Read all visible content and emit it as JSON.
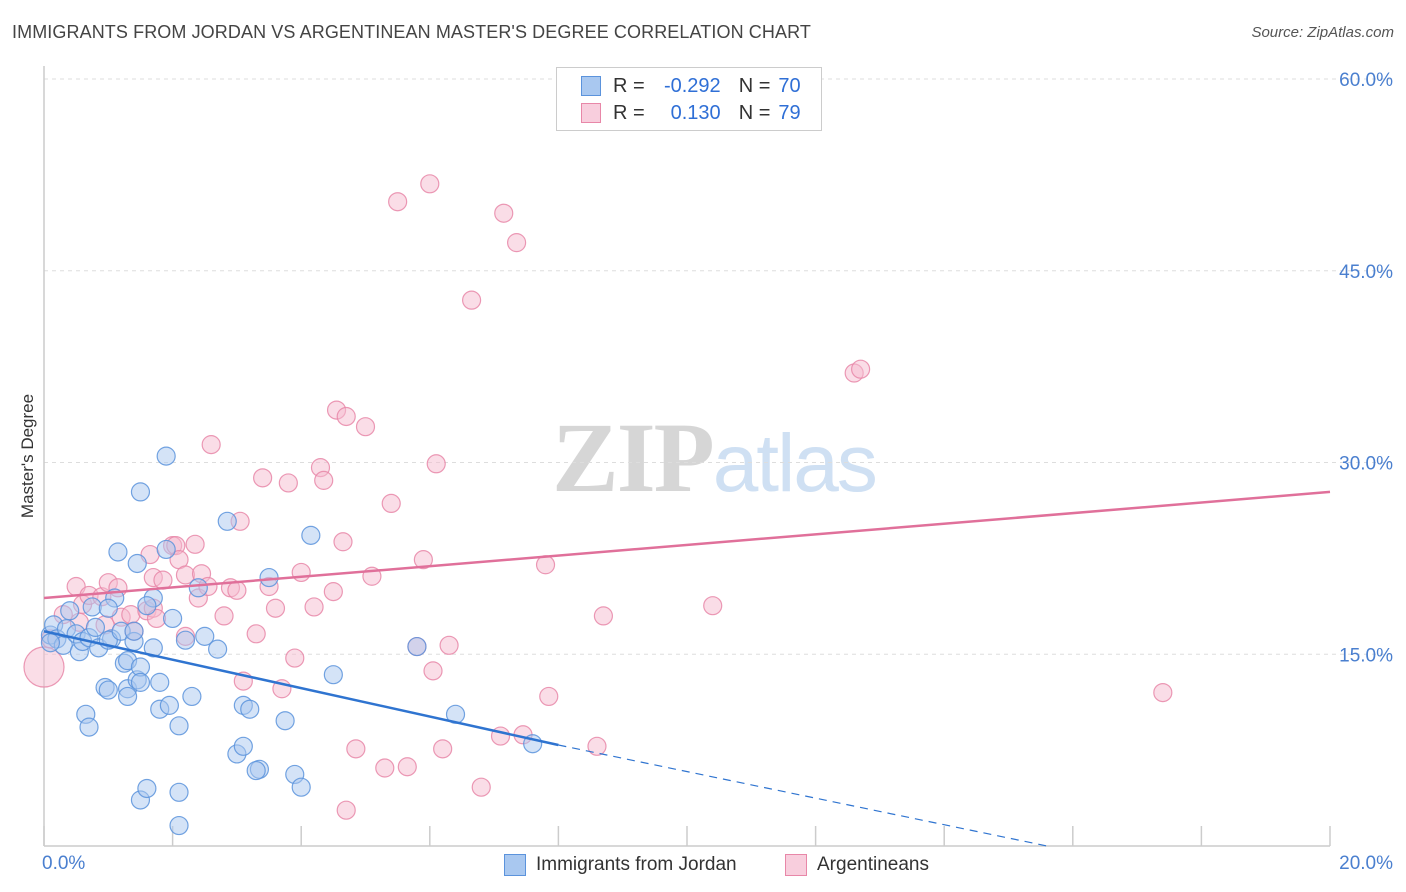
{
  "title": "IMMIGRANTS FROM JORDAN VS ARGENTINEAN MASTER'S DEGREE CORRELATION CHART",
  "source": "Source: ZipAtlas.com",
  "watermark": {
    "zip": "ZIP",
    "atlas": "atlas"
  },
  "legend": {
    "rows": [
      {
        "r_label": "R =",
        "r_value": "-0.292",
        "n_label": "N =",
        "n_value": "70"
      },
      {
        "r_label": "R =",
        "r_value": "0.130",
        "n_label": "N =",
        "n_value": "79"
      }
    ]
  },
  "bottom_legend": [
    "Immigrants from Jordan",
    "Argentineans"
  ],
  "colors": {
    "blue_fill": "#a9c8f0",
    "blue_stroke": "#5b93dc",
    "blue_line": "#2f74d0",
    "pink_fill": "#f6bcd0",
    "pink_stroke": "#e887a8",
    "pink_line": "#e0709a",
    "grid": "#dddddd",
    "tick": "#4a7fcf"
  },
  "chart_data": {
    "type": "scatter",
    "title": "IMMIGRANTS FROM JORDAN VS ARGENTINEAN MASTER'S DEGREE CORRELATION CHART",
    "xlabel": "",
    "ylabel": "Master's Degree",
    "xlim": [
      0,
      20
    ],
    "ylim": [
      0,
      60
    ],
    "x_tick_labels": [
      {
        "value": 0,
        "label": "0.0%"
      },
      {
        "value": 20,
        "label": "20.0%"
      }
    ],
    "y_tick_labels": [
      {
        "value": 15,
        "label": "15.0%"
      },
      {
        "value": 30,
        "label": "30.0%"
      },
      {
        "value": 45,
        "label": "45.0%"
      },
      {
        "value": 60,
        "label": "60.0%"
      }
    ],
    "y_grid": [
      15,
      30,
      45,
      60
    ],
    "series": [
      {
        "name": "Immigrants from Jordan",
        "color": "blue",
        "r": -0.292,
        "n": 70,
        "trend": {
          "x0": 0,
          "y0": 16.8,
          "x1": 8,
          "y1": 7.9,
          "dash_to_x": 15.6,
          "dash_to_y": -0.5
        },
        "points": [
          [
            0.1,
            16.5
          ],
          [
            0.15,
            17.3
          ],
          [
            0.2,
            16.2
          ],
          [
            0.3,
            15.7
          ],
          [
            0.35,
            17.0
          ],
          [
            0.4,
            18.4
          ],
          [
            0.5,
            16.6
          ],
          [
            0.55,
            15.2
          ],
          [
            0.6,
            16.0
          ],
          [
            0.7,
            16.3
          ],
          [
            0.75,
            18.7
          ],
          [
            0.8,
            17.1
          ],
          [
            0.85,
            15.5
          ],
          [
            0.95,
            12.4
          ],
          [
            1.0,
            12.2
          ],
          [
            1.05,
            16.2
          ],
          [
            0.65,
            10.3
          ],
          [
            0.7,
            9.3
          ],
          [
            1.0,
            16.1
          ],
          [
            1.1,
            19.4
          ],
          [
            1.2,
            16.8
          ],
          [
            1.25,
            14.3
          ],
          [
            1.3,
            12.3
          ],
          [
            1.3,
            11.7
          ],
          [
            1.3,
            14.5
          ],
          [
            1.4,
            16.0
          ],
          [
            1.4,
            16.8
          ],
          [
            1.45,
            13.0
          ],
          [
            1.5,
            14.0
          ],
          [
            1.5,
            12.8
          ],
          [
            1.5,
            3.6
          ],
          [
            1.6,
            4.5
          ],
          [
            1.7,
            19.4
          ],
          [
            1.7,
            15.5
          ],
          [
            1.8,
            10.7
          ],
          [
            1.8,
            12.8
          ],
          [
            1.9,
            23.2
          ],
          [
            1.9,
            30.5
          ],
          [
            2.0,
            17.8
          ],
          [
            2.1,
            9.4
          ],
          [
            2.2,
            16.1
          ],
          [
            2.3,
            11.7
          ],
          [
            1.5,
            27.7
          ],
          [
            1.0,
            18.6
          ],
          [
            1.15,
            23.0
          ],
          [
            1.45,
            22.1
          ],
          [
            1.6,
            18.8
          ],
          [
            1.95,
            11.0
          ],
          [
            2.1,
            4.2
          ],
          [
            2.4,
            20.2
          ],
          [
            2.5,
            16.4
          ],
          [
            2.7,
            15.4
          ],
          [
            2.85,
            25.4
          ],
          [
            3.0,
            7.2
          ],
          [
            3.1,
            7.8
          ],
          [
            3.1,
            11.0
          ],
          [
            3.2,
            10.7
          ],
          [
            3.35,
            6.0
          ],
          [
            3.5,
            21.0
          ],
          [
            3.75,
            9.8
          ],
          [
            3.9,
            5.6
          ],
          [
            4.0,
            4.6
          ],
          [
            4.15,
            24.3
          ],
          [
            4.5,
            13.4
          ],
          [
            5.8,
            15.6
          ],
          [
            6.4,
            10.3
          ],
          [
            7.6,
            8.0
          ],
          [
            2.1,
            1.6
          ],
          [
            3.3,
            5.9
          ],
          [
            0.1,
            15.9
          ]
        ]
      },
      {
        "name": "Argentineans",
        "color": "pink",
        "r": 0.13,
        "n": 79,
        "trend": {
          "x0": 0,
          "y0": 19.4,
          "x1": 20,
          "y1": 27.7
        },
        "points": [
          [
            0.0,
            14.0
          ],
          [
            0.1,
            16.2
          ],
          [
            0.3,
            18.1
          ],
          [
            0.5,
            20.3
          ],
          [
            0.55,
            17.5
          ],
          [
            0.6,
            18.9
          ],
          [
            0.7,
            19.6
          ],
          [
            0.9,
            19.5
          ],
          [
            0.95,
            17.3
          ],
          [
            1.0,
            20.6
          ],
          [
            1.15,
            20.2
          ],
          [
            1.2,
            17.9
          ],
          [
            1.35,
            18.1
          ],
          [
            1.4,
            16.8
          ],
          [
            1.6,
            18.4
          ],
          [
            1.65,
            22.8
          ],
          [
            1.7,
            21.0
          ],
          [
            1.7,
            18.6
          ],
          [
            1.75,
            17.8
          ],
          [
            1.85,
            20.8
          ],
          [
            2.0,
            23.5
          ],
          [
            2.05,
            23.5
          ],
          [
            2.1,
            22.4
          ],
          [
            2.2,
            16.4
          ],
          [
            2.2,
            21.2
          ],
          [
            2.35,
            23.6
          ],
          [
            2.4,
            19.4
          ],
          [
            2.45,
            21.3
          ],
          [
            2.55,
            20.3
          ],
          [
            2.6,
            31.4
          ],
          [
            2.8,
            18.0
          ],
          [
            2.9,
            20.2
          ],
          [
            3.0,
            20.0
          ],
          [
            3.05,
            25.4
          ],
          [
            3.1,
            12.9
          ],
          [
            3.3,
            16.6
          ],
          [
            3.4,
            28.8
          ],
          [
            3.5,
            20.3
          ],
          [
            3.6,
            18.6
          ],
          [
            3.7,
            12.3
          ],
          [
            3.8,
            28.4
          ],
          [
            3.9,
            14.7
          ],
          [
            4.0,
            21.4
          ],
          [
            4.2,
            18.7
          ],
          [
            4.3,
            29.6
          ],
          [
            4.35,
            28.6
          ],
          [
            4.5,
            19.9
          ],
          [
            4.55,
            34.1
          ],
          [
            4.65,
            23.8
          ],
          [
            4.7,
            33.6
          ],
          [
            4.85,
            7.6
          ],
          [
            5.0,
            32.8
          ],
          [
            5.1,
            21.1
          ],
          [
            5.3,
            6.1
          ],
          [
            5.4,
            26.8
          ],
          [
            5.5,
            50.4
          ],
          [
            5.65,
            6.2
          ],
          [
            5.8,
            15.6
          ],
          [
            5.9,
            22.4
          ],
          [
            6.0,
            51.8
          ],
          [
            6.05,
            13.7
          ],
          [
            6.1,
            29.9
          ],
          [
            6.2,
            7.6
          ],
          [
            6.3,
            15.7
          ],
          [
            6.65,
            42.7
          ],
          [
            6.8,
            4.6
          ],
          [
            7.1,
            8.6
          ],
          [
            7.15,
            49.5
          ],
          [
            7.35,
            47.2
          ],
          [
            7.45,
            8.7
          ],
          [
            7.8,
            22.0
          ],
          [
            7.85,
            11.7
          ],
          [
            8.6,
            7.8
          ],
          [
            8.7,
            18.0
          ],
          [
            10.4,
            18.8
          ],
          [
            12.6,
            37.0
          ],
          [
            12.7,
            37.3
          ],
          [
            17.4,
            12.0
          ],
          [
            4.7,
            2.8
          ]
        ]
      }
    ]
  }
}
